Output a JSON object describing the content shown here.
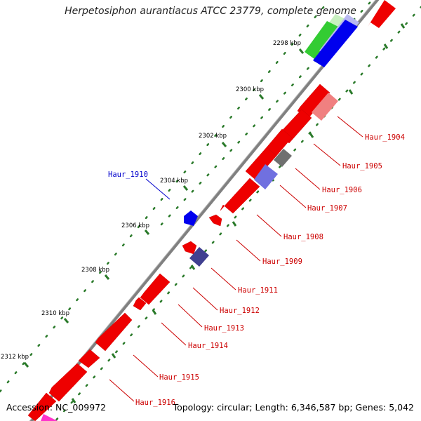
{
  "title": "Herpetosiphon aurantiacus ATCC 23779, complete genome",
  "footer": {
    "accession_label": "Accession:",
    "accession": "NC_009972",
    "topology_label": "Topology:",
    "topology": "circular",
    "length_label": "Length:",
    "length": "6,346,587 bp",
    "genes_label": "Genes:",
    "genes": "5,042"
  },
  "ticks": [
    "2298 kbp",
    "2300 kbp",
    "2302 kbp",
    "2304 kbp",
    "2306 kbp",
    "2308 kbp",
    "2310 kbp",
    "2312 kbp"
  ],
  "genes": [
    {
      "label": "Haur_1904",
      "color": "#cc0000"
    },
    {
      "label": "Haur_1905",
      "color": "#cc0000"
    },
    {
      "label": "Haur_1906",
      "color": "#cc0000"
    },
    {
      "label": "Haur_1907",
      "color": "#cc0000"
    },
    {
      "label": "Haur_1908",
      "color": "#cc0000"
    },
    {
      "label": "Haur_1909",
      "color": "#cc0000"
    },
    {
      "label": "Haur_1910",
      "color": "#0000cc"
    },
    {
      "label": "Haur_1911",
      "color": "#cc0000"
    },
    {
      "label": "Haur_1912",
      "color": "#cc0000"
    },
    {
      "label": "Haur_1913",
      "color": "#cc0000"
    },
    {
      "label": "Haur_1914",
      "color": "#cc0000"
    },
    {
      "label": "Haur_1915",
      "color": "#cc0000"
    },
    {
      "label": "Haur_1916",
      "color": "#cc0000"
    }
  ],
  "colors": {
    "backbone": "#808080",
    "cds": "#ff0000",
    "gene_label": "#cc0000",
    "highlight_label": "#0000cc",
    "tick": "#2a7a2a",
    "dots": "#2a7a2a",
    "rna_blue": "#0000ee",
    "rna_green": "#33cc33",
    "pink_cds": "#f08080",
    "grey_cds": "#707070",
    "purple_cds": "#7070e0",
    "navy_cds": "#404090",
    "magenta_cds": "#ff33cc"
  }
}
